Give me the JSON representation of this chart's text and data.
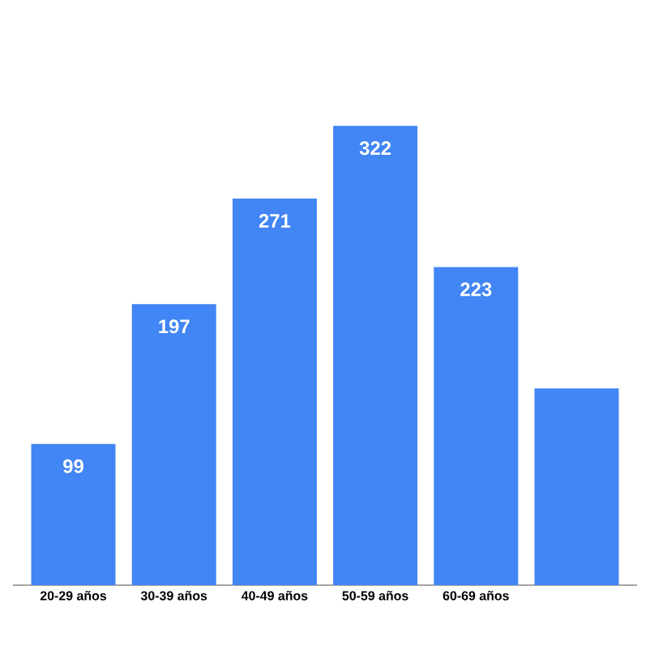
{
  "chart_data": {
    "type": "bar",
    "categories": [
      "20-29 años",
      "30-39 años",
      "40-49 años",
      "50-59 años",
      "60-69 años",
      null
    ],
    "values": [
      99,
      197,
      271,
      322,
      223,
      138
    ],
    "value_labels": [
      "99",
      "197",
      "271",
      "322",
      "223",
      null
    ],
    "color": "#4285f4"
  }
}
